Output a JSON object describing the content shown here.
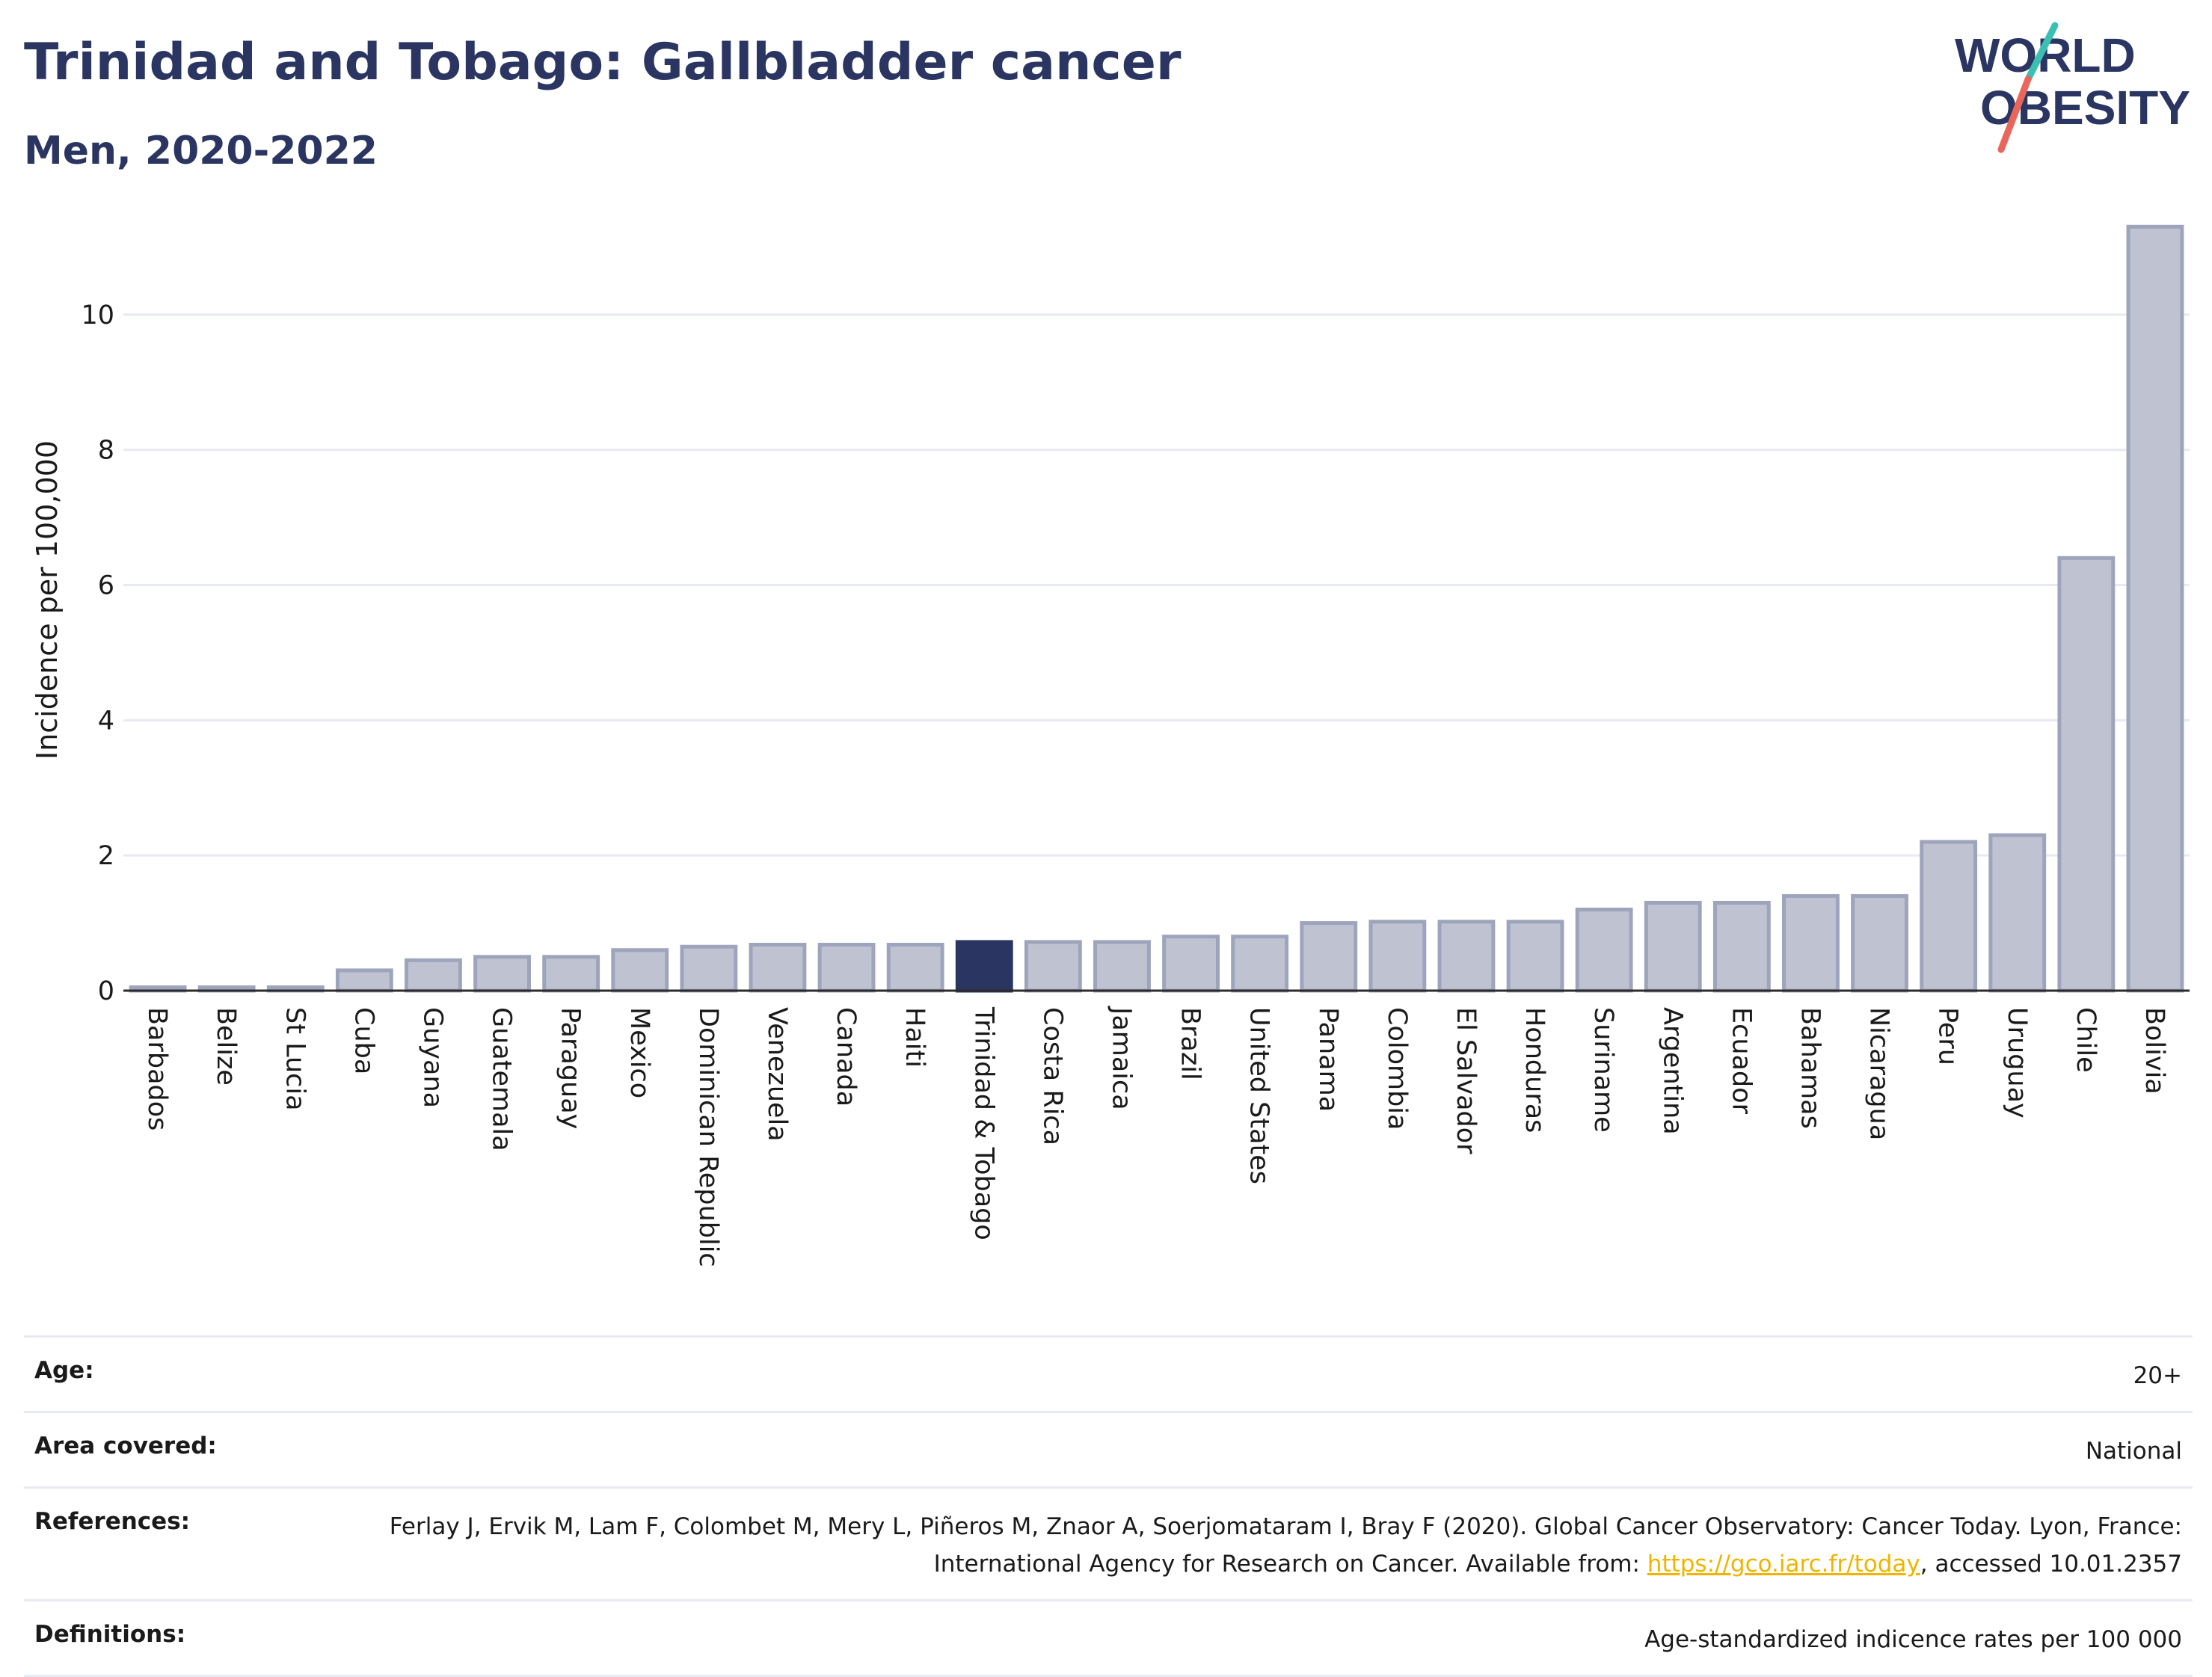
{
  "header": {
    "title": "Trinidad and Tobago: Gallbladder cancer",
    "subtitle": "Men, 2020-2022"
  },
  "logo": {
    "line1": "WORLD",
    "line2": "OBESITY"
  },
  "colors": {
    "bar": "#bfc3d1",
    "bar_outline": "#9ea4bc",
    "highlight": "#2b3562",
    "grid": "#e8eaf1",
    "link": "#f0b400",
    "logo_teal": "#3bbfb3",
    "logo_red": "#e8675a"
  },
  "chart_data": {
    "type": "bar",
    "title": "Trinidad and Tobago: Gallbladder cancer",
    "subtitle": "Men, 2020-2022",
    "xlabel": "",
    "ylabel": "Incidence per 100,000",
    "ylim": [
      0,
      12
    ],
    "yticks": [
      0,
      2,
      4,
      6,
      8,
      10
    ],
    "grid": true,
    "highlight": "Trinidad & Tobago",
    "categories": [
      "Barbados",
      "Belize",
      "St Lucia",
      "Cuba",
      "Guyana",
      "Guatemala",
      "Paraguay",
      "Mexico",
      "Dominican Republic",
      "Venezuela",
      "Canada",
      "Haiti",
      "Trinidad & Tobago",
      "Costa Rica",
      "Jamaica",
      "Brazil",
      "United States",
      "Panama",
      "Colombia",
      "El Salvador",
      "Honduras",
      "Suriname",
      "Argentina",
      "Ecuador",
      "Bahamas",
      "Nicaragua",
      "Peru",
      "Uruguay",
      "Chile",
      "Bolivia"
    ],
    "values": [
      0.05,
      0.05,
      0.05,
      0.3,
      0.45,
      0.5,
      0.5,
      0.6,
      0.65,
      0.68,
      0.68,
      0.68,
      0.72,
      0.72,
      0.72,
      0.8,
      0.8,
      1.0,
      1.02,
      1.02,
      1.02,
      1.2,
      1.3,
      1.3,
      1.4,
      1.4,
      2.2,
      2.3,
      6.4,
      11.3
    ]
  },
  "info": {
    "age_label": "Age:",
    "age_value": "20+",
    "area_label": "Area covered:",
    "area_value": "National",
    "references_label": "References:",
    "references_text": "Ferlay J, Ervik M, Lam F, Colombet M, Mery L, Piñeros M, Znaor A, Soerjomataram I, Bray F (2020). Global Cancer Observatory: Cancer Today. Lyon, France: International Agency for Research on Cancer. Available from:",
    "references_link": "https://gco.iarc.fr/today",
    "references_suffix": ", accessed 10.01.2357",
    "definitions_label": "Definitions:",
    "definitions_value": "Age-standardized indicence rates per 100 000"
  }
}
